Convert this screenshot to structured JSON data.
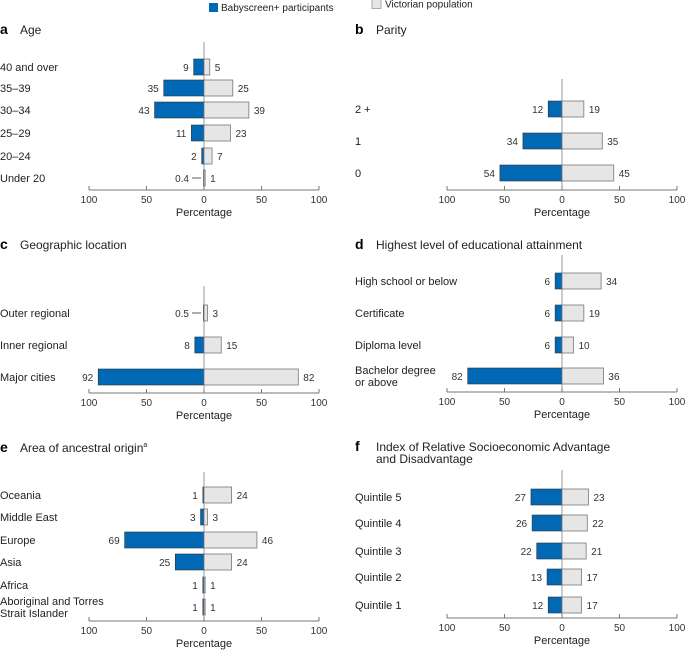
{
  "legend": {
    "participants": {
      "label": "Babyscreen+ participants",
      "color": "#0068b5"
    },
    "population": {
      "label": "Victorian population",
      "color": "#e6e6e6"
    }
  },
  "chart_data": [
    {
      "type": "bar",
      "orientation": "horizontal-diverging",
      "panel": "a",
      "title": "Age",
      "categories": [
        "40 and over",
        "35–39",
        "30–34",
        "25–29",
        "20–24",
        "Under 20"
      ],
      "series": [
        {
          "name": "Babyscreen+ participants",
          "values": [
            9,
            35,
            43,
            11,
            2,
            0.4
          ]
        },
        {
          "name": "Victorian population",
          "values": [
            5,
            25,
            39,
            23,
            7,
            1
          ]
        }
      ],
      "xlabel": "Percentage",
      "xticks": [
        "100",
        "50",
        "0",
        "50",
        "100"
      ],
      "xlim": [
        -100,
        100
      ]
    },
    {
      "type": "bar",
      "orientation": "horizontal-diverging",
      "panel": "b",
      "title": "Parity",
      "categories": [
        "2 +",
        "1",
        "0"
      ],
      "series": [
        {
          "name": "Babyscreen+ participants",
          "values": [
            12,
            34,
            54
          ]
        },
        {
          "name": "Victorian population",
          "values": [
            19,
            35,
            45
          ]
        }
      ],
      "xlabel": "Percentage",
      "xticks": [
        "100",
        "50",
        "0",
        "50",
        "100"
      ],
      "xlim": [
        -100,
        100
      ]
    },
    {
      "type": "bar",
      "orientation": "horizontal-diverging",
      "panel": "c",
      "title": "Geographic location",
      "categories": [
        "Outer regional",
        "Inner regional",
        "Major cities"
      ],
      "series": [
        {
          "name": "Babyscreen+ participants",
          "values": [
            0.5,
            8,
            92
          ]
        },
        {
          "name": "Victorian population",
          "values": [
            3,
            15,
            82
          ]
        }
      ],
      "xlabel": "Percentage",
      "xticks": [
        "100",
        "50",
        "0",
        "50",
        "100"
      ],
      "xlim": [
        -100,
        100
      ]
    },
    {
      "type": "bar",
      "orientation": "horizontal-diverging",
      "panel": "d",
      "title": "Highest level of educational attainment",
      "categories": [
        "High school or below",
        "Certificate",
        "Diploma level",
        "Bachelor degree\nor above"
      ],
      "series": [
        {
          "name": "Babyscreen+ participants",
          "values": [
            6,
            6,
            6,
            82
          ]
        },
        {
          "name": "Victorian population",
          "values": [
            34,
            19,
            10,
            36
          ]
        }
      ],
      "xlabel": "Percentage",
      "xticks": [
        "100",
        "50",
        "0",
        "50",
        "100"
      ],
      "xlim": [
        -100,
        100
      ]
    },
    {
      "type": "bar",
      "orientation": "horizontal-diverging",
      "panel": "e",
      "title": "Area of ancestral origin",
      "title_superscript": "a",
      "categories": [
        "Oceania",
        "Middle East",
        "Europe",
        "Asia",
        "Africa",
        "Aboriginal and Torres\nStrait Islander"
      ],
      "series": [
        {
          "name": "Babyscreen+ participants",
          "values": [
            1,
            3,
            69,
            25,
            1,
            1
          ]
        },
        {
          "name": "Victorian population",
          "values": [
            24,
            3,
            46,
            24,
            1,
            1
          ]
        }
      ],
      "xlabel": "Percentage",
      "xticks": [
        "100",
        "50",
        "0",
        "50",
        "100"
      ],
      "xlim": [
        -100,
        100
      ]
    },
    {
      "type": "bar",
      "orientation": "horizontal-diverging",
      "panel": "f",
      "title": "Index of Relative Socioeconomic Advantage\nand Disadvantage",
      "categories": [
        "Quintile 5",
        "Quintile 4",
        "Quintile 3",
        "Quintile 2",
        "Quintile 1"
      ],
      "series": [
        {
          "name": "Babyscreen+ participants",
          "values": [
            27,
            26,
            22,
            13,
            12
          ]
        },
        {
          "name": "Victorian population",
          "values": [
            23,
            22,
            21,
            17,
            17
          ]
        }
      ],
      "xlabel": "Percentage",
      "xticks": [
        "100",
        "50",
        "0",
        "50",
        "100"
      ],
      "xlim": [
        -100,
        100
      ]
    }
  ]
}
